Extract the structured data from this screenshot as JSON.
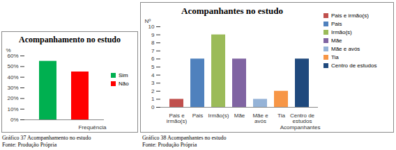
{
  "chart_data": [
    {
      "type": "bar",
      "title": "Acompanhamento no estudo",
      "caption": "Gráfico 37 Acompanhamento no estudo",
      "source": "Fonte: Produção Própria",
      "x_label": "Frequência",
      "y_label": "%",
      "categories": [
        "Sim",
        "Não"
      ],
      "values": [
        55,
        45
      ],
      "colors": [
        "#00b050",
        "#ff0000"
      ],
      "ylim": [
        0,
        60
      ],
      "yticks": [
        {
          "value": 0,
          "label": "0%"
        },
        {
          "value": 10,
          "label": "10%"
        },
        {
          "value": 20,
          "label": "20%"
        },
        {
          "value": 30,
          "label": "30%"
        },
        {
          "value": 40,
          "label": "40%"
        },
        {
          "value": 50,
          "label": "50%"
        },
        {
          "value": 60,
          "label": "60%"
        }
      ],
      "grid": false,
      "legend": "right",
      "tick_labels": "y"
    },
    {
      "type": "bar",
      "title": "Acompanhantes no estudo",
      "caption": "Gráfico 38 Acompanhantes no estudo",
      "source": "Fonte: Produção Própria",
      "x_label": "Acompanhantes",
      "y_label": "Nº",
      "categories": [
        "Pais e irmão(s)",
        "Pais",
        "Irmão(s)",
        "Mãe",
        "Mãe e avós",
        "Tia",
        "Centro de estudos"
      ],
      "values": [
        1,
        6,
        9,
        6,
        1,
        2,
        6
      ],
      "colors": [
        "#c0504d",
        "#4f81bd",
        "#9bbb59",
        "#8064a2",
        "#95b3d7",
        "#f79646",
        "#1f497d"
      ],
      "ylim": [
        0,
        10
      ],
      "yticks": [
        0,
        1,
        2,
        3,
        4,
        5,
        6,
        7,
        8,
        9,
        10
      ],
      "grid": false,
      "legend": "right"
    }
  ]
}
